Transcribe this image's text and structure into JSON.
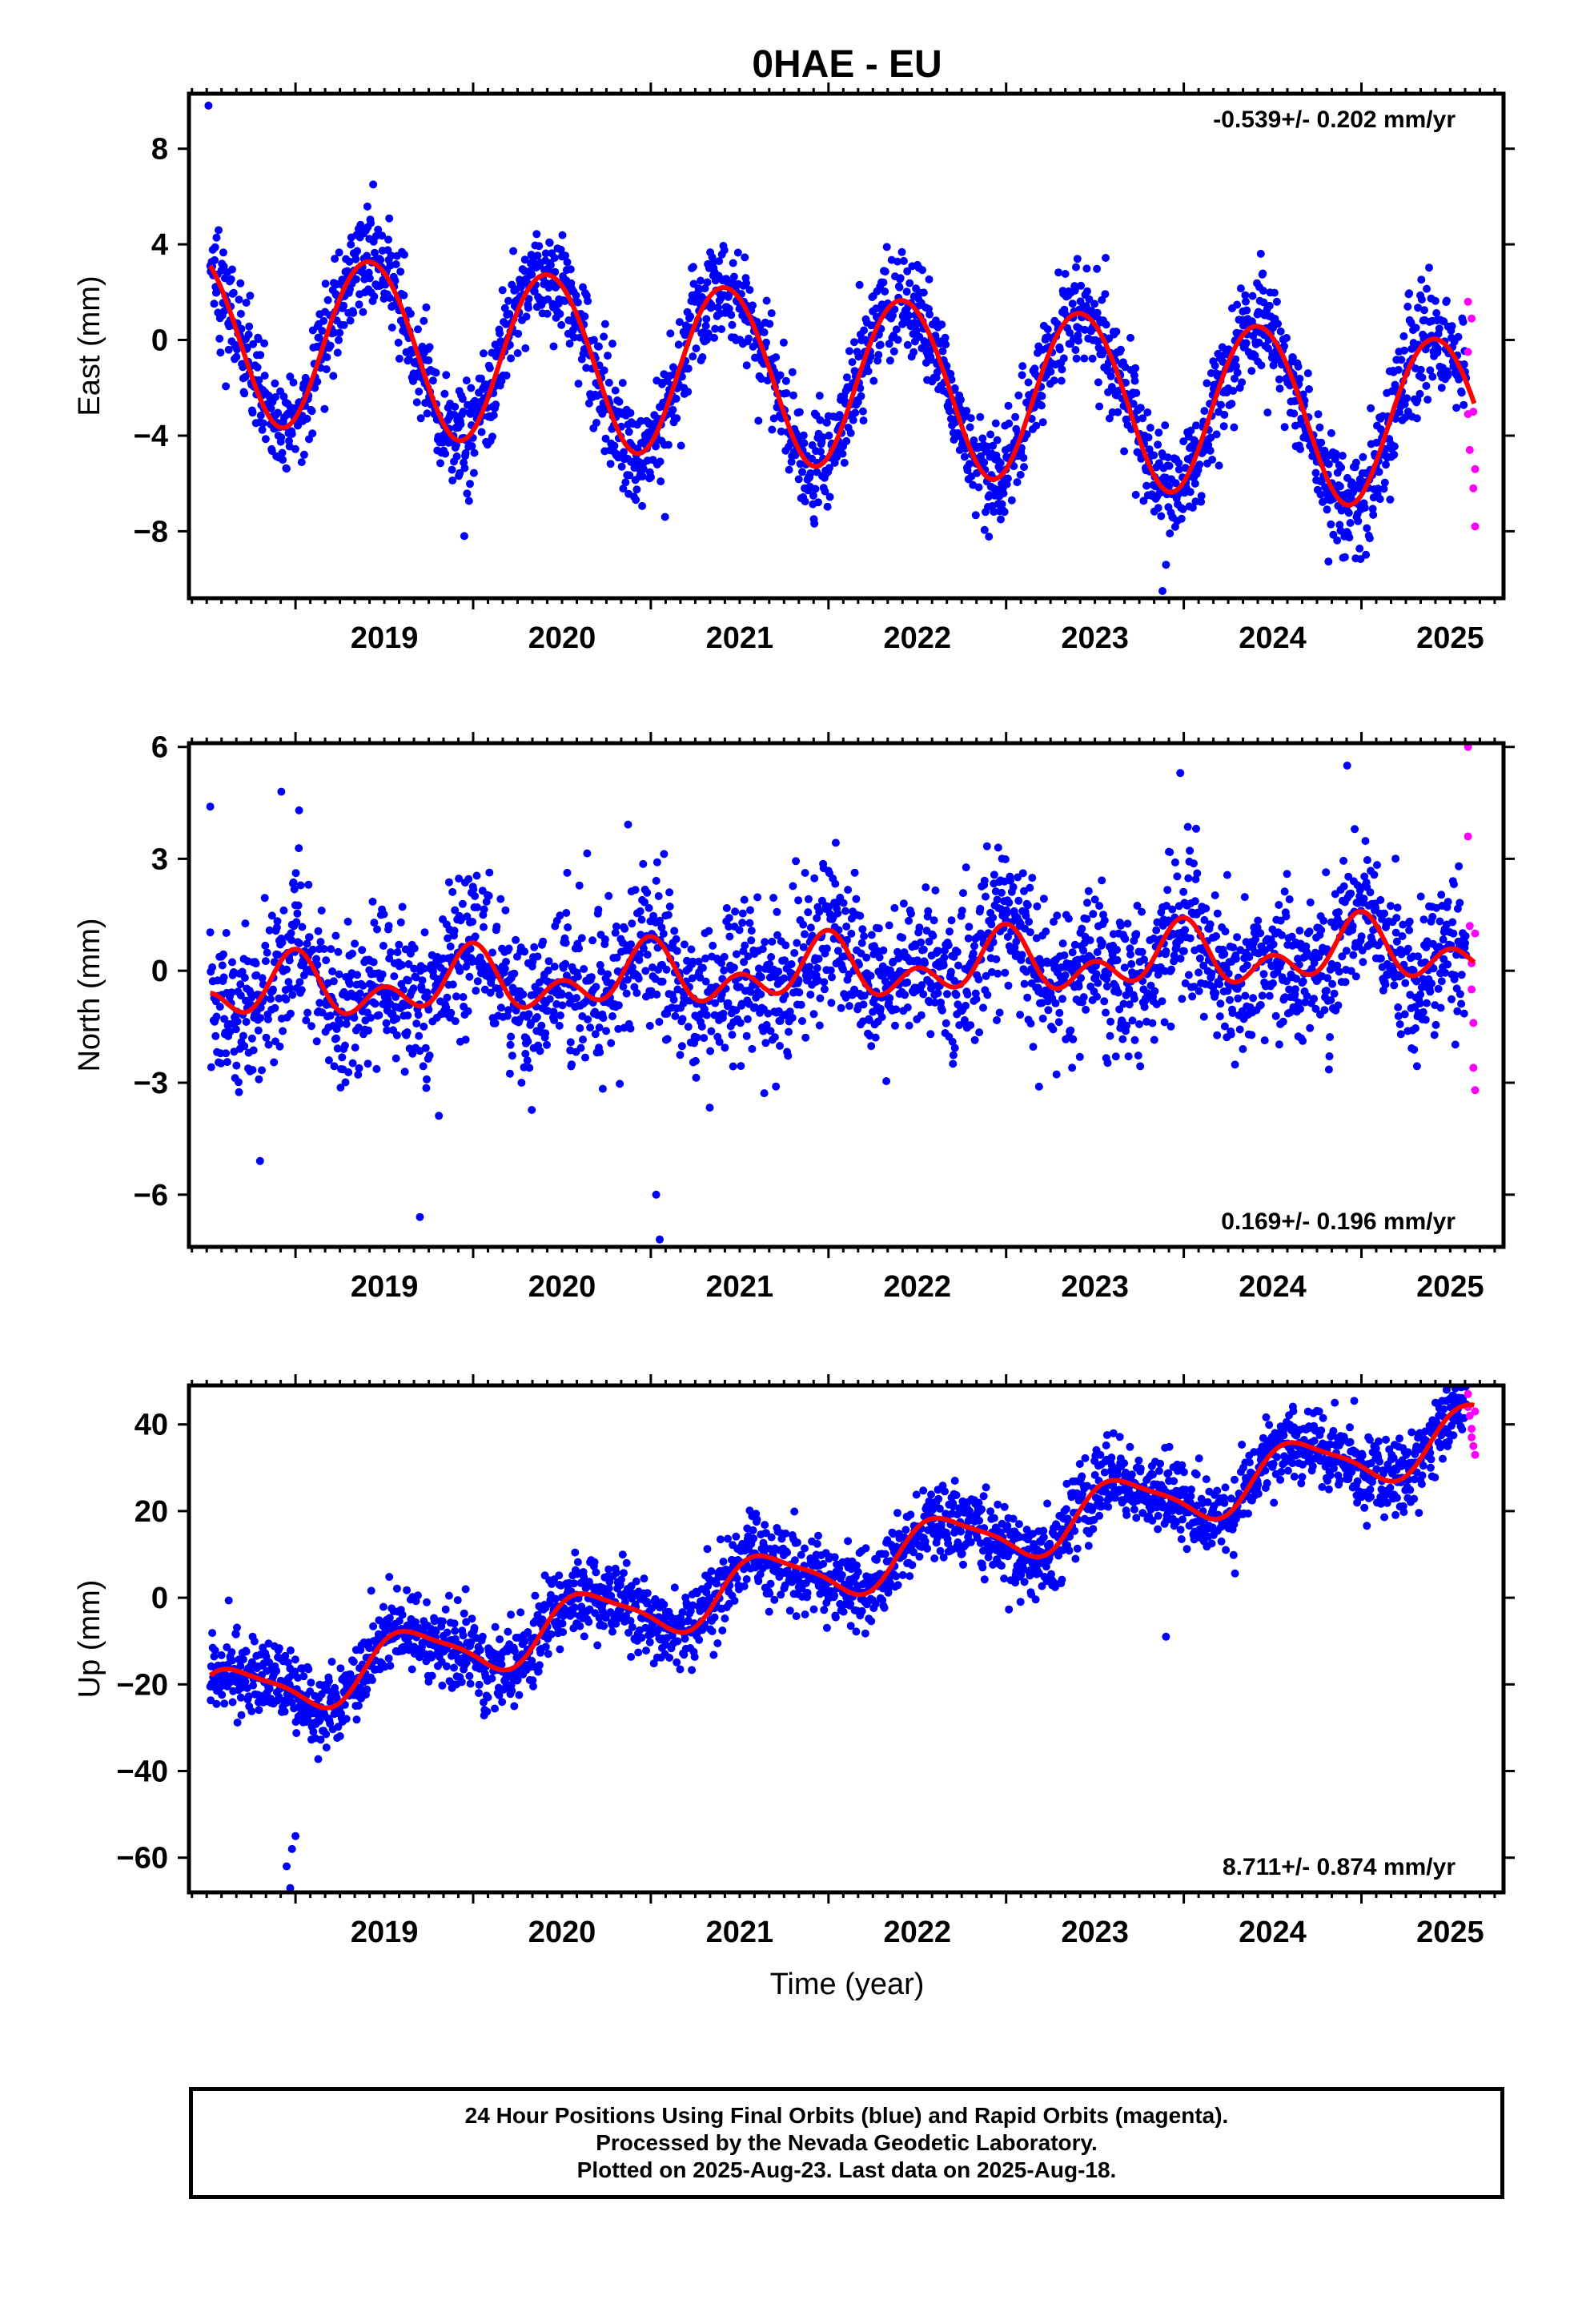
{
  "title": "0HAE - EU",
  "colors": {
    "final": "#0000ff",
    "rapid": "#ff00ff",
    "fit": "#ff0000",
    "axis": "#000000"
  },
  "xaxis": {
    "label": "Time (year)",
    "range": [
      2018.4,
      2025.8
    ],
    "ticks": [
      2019,
      2020,
      2021,
      2022,
      2023,
      2024,
      2025
    ],
    "tick_labels": [
      "2019",
      "2020",
      "2021",
      "2022",
      "2023",
      "2024",
      "2025"
    ]
  },
  "chart_data": [
    {
      "type": "scatter",
      "ylabel": "East (mm)",
      "ylim": [
        -10.8,
        10.3
      ],
      "yticks": [
        8,
        4,
        0,
        -4,
        -8
      ],
      "ytick_labels": [
        "8",
        "4",
        "0",
        "−4",
        "−8"
      ],
      "rate_label": "-0.539+/- 0.202 mm/yr",
      "rate_position": "top-right",
      "model": {
        "rate": -0.539,
        "offset": 0.3,
        "annual_amp": 3.6,
        "annual_phase": 2019.42,
        "semi_amp": 0.15,
        "semi_phase": 2019.2,
        "noise": 1.1
      },
      "rapid_points": [
        [
          2025.6,
          1.6
        ],
        [
          2025.6,
          -0.5
        ],
        [
          2025.6,
          -3.1
        ],
        [
          2025.61,
          -4.6
        ],
        [
          2025.62,
          0.9
        ],
        [
          2025.63,
          -3.0
        ],
        [
          2025.63,
          -6.2
        ],
        [
          2025.64,
          -7.8
        ],
        [
          2025.64,
          -5.4
        ]
      ],
      "outliers": [
        [
          2018.51,
          9.8
        ],
        [
          2019.95,
          -8.2
        ],
        [
          2023.88,
          -10.5
        ],
        [
          2023.9,
          -9.4
        ],
        [
          2021.08,
          -7.4
        ],
        [
          2022.97,
          -7.5
        ]
      ]
    },
    {
      "type": "scatter",
      "ylabel": "North (mm)",
      "ylim": [
        -7.4,
        6.1
      ],
      "yticks": [
        6,
        3,
        0,
        -3,
        -6
      ],
      "ytick_labels": [
        "6",
        "3",
        "0",
        "−3",
        "−6"
      ],
      "rate_label": "0.169+/- 0.196 mm/yr",
      "rate_position": "bottom-right",
      "model": {
        "rate": 0.169,
        "offset": -0.6,
        "annual_amp": 0.55,
        "annual_phase": 2018.98,
        "semi_amp": 0.55,
        "semi_phase": 2019.0,
        "noise": 1.0
      },
      "rapid_points": [
        [
          2025.6,
          6.0
        ],
        [
          2025.6,
          3.6
        ],
        [
          2025.61,
          1.2
        ],
        [
          2025.62,
          0.2
        ],
        [
          2025.62,
          -0.5
        ],
        [
          2025.63,
          -1.4
        ],
        [
          2025.63,
          -2.6
        ],
        [
          2025.64,
          -3.2
        ],
        [
          2025.64,
          1.0
        ]
      ],
      "outliers": [
        [
          2018.52,
          4.4
        ],
        [
          2018.92,
          4.8
        ],
        [
          2019.02,
          4.3
        ],
        [
          2019.7,
          -6.6
        ],
        [
          2021.05,
          -7.2
        ],
        [
          2021.03,
          -6.0
        ],
        [
          2024.92,
          5.5
        ],
        [
          2023.98,
          5.3
        ],
        [
          2018.8,
          -5.1
        ]
      ]
    },
    {
      "type": "scatter",
      "ylabel": "Up (mm)",
      "ylim": [
        -68,
        49
      ],
      "yticks": [
        40,
        20,
        0,
        -20,
        -40,
        -60
      ],
      "ytick_labels": [
        "40",
        "20",
        "0",
        "−20",
        "−40",
        "−60"
      ],
      "rate_label": "8.711+/- 0.874 mm/yr",
      "rate_position": "bottom-right",
      "model": {
        "rate": 8.711,
        "offset": -24.0,
        "annual_amp": 6.5,
        "annual_phase": 2018.65,
        "semi_amp": 1.5,
        "semi_phase": 2018.5,
        "noise": 4.5
      },
      "rapid_points": [
        [
          2025.6,
          47.0
        ],
        [
          2025.6,
          44.0
        ],
        [
          2025.61,
          42.0
        ],
        [
          2025.62,
          39.0
        ],
        [
          2025.62,
          37.0
        ],
        [
          2025.63,
          35.0
        ],
        [
          2025.64,
          33.0
        ],
        [
          2025.64,
          43.0
        ]
      ],
      "outliers": [
        [
          2018.97,
          -67.0
        ],
        [
          2018.95,
          -62.0
        ],
        [
          2018.98,
          -58.0
        ],
        [
          2019.0,
          -55.0
        ],
        [
          2023.9,
          -9.0
        ],
        [
          2024.85,
          45.0
        ]
      ]
    }
  ],
  "footer": {
    "line1": "24 Hour Positions Using Final Orbits (blue) and Rapid Orbits (magenta).",
    "line2": "Processed by the Nevada Geodetic Laboratory.",
    "line3": "Plotted on 2025-Aug-23. Last data on 2025-Aug-18."
  }
}
